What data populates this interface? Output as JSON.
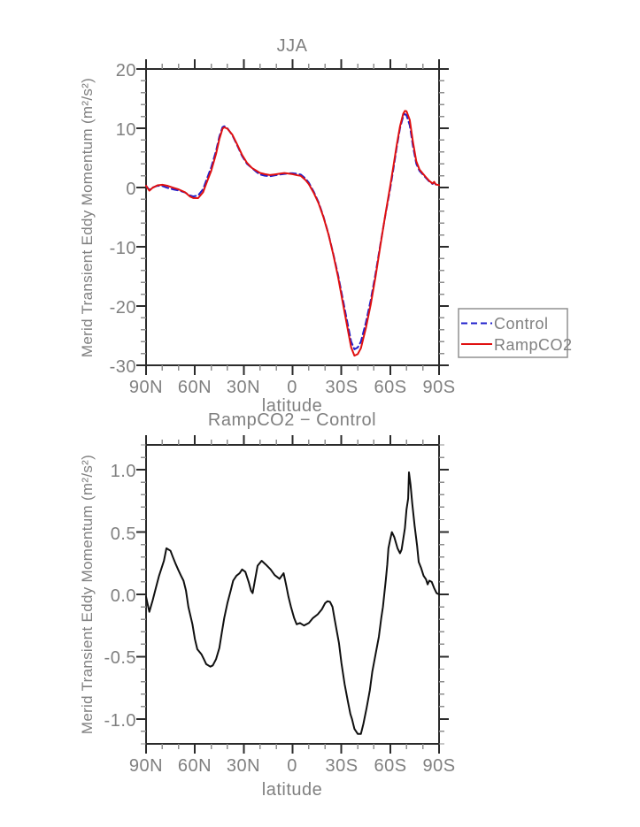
{
  "style": {
    "background": "#ffffff",
    "text_color": "#808080",
    "axis_color": "#2b2b2b",
    "minor_tick_color": "#8f8f8f",
    "legend_border_color": "#909090",
    "control_color": "#2020cc",
    "rampco2_color": "#e01010",
    "diff_color": "#101010"
  },
  "legend": {
    "entries": [
      {
        "label": "Control",
        "color": "#2020cc",
        "style": "dashed"
      },
      {
        "label": "RampCO2",
        "color": "#e01010",
        "style": "solid"
      }
    ]
  },
  "chart_data": [
    {
      "type": "line",
      "title": "JJA",
      "xlabel": "latitude",
      "ylabel": "Merid Transient Eddy Momentum (m²/s²)",
      "x_axis": {
        "min": -90,
        "max": 90,
        "major_step": 30,
        "minor_step": 10,
        "direction": "N-left to S-right",
        "tick_labels": [
          "90N",
          "60N",
          "30N",
          "0",
          "30S",
          "60S",
          "90S"
        ]
      },
      "y_axis": {
        "min": -30,
        "max": 20,
        "major_step": 10,
        "minor_step": 2,
        "tick_labels": [
          "20",
          "10",
          "0",
          "-10",
          "-20",
          "-30"
        ]
      },
      "legend_position": "outside-lower-right",
      "series": [
        {
          "name": "Control",
          "color": "#2020cc",
          "style": "dashed",
          "points": [
            [
              90,
              0.3
            ],
            [
              88,
              -0.4
            ],
            [
              86,
              0.0
            ],
            [
              83,
              0.3
            ],
            [
              80,
              0.25
            ],
            [
              77,
              -0.05
            ],
            [
              73,
              -0.35
            ],
            [
              70,
              -0.5
            ],
            [
              66,
              -0.85
            ],
            [
              63,
              -1.35
            ],
            [
              61,
              -1.5
            ],
            [
              58,
              -1.35
            ],
            [
              55,
              -0.3
            ],
            [
              53,
              1.2
            ],
            [
              50,
              3.4
            ],
            [
              47,
              6.2
            ],
            [
              45,
              8.6
            ],
            [
              43,
              10.2
            ],
            [
              42,
              10.35
            ],
            [
              40,
              10.0
            ],
            [
              37,
              8.8
            ],
            [
              34,
              7.1
            ],
            [
              31,
              5.3
            ],
            [
              28,
              4.0
            ],
            [
              25,
              3.3
            ],
            [
              22,
              2.6
            ],
            [
              20,
              2.2
            ],
            [
              17,
              2.0
            ],
            [
              14,
              1.9
            ],
            [
              11,
              2.05
            ],
            [
              8,
              2.2
            ],
            [
              5,
              2.3
            ],
            [
              2,
              2.4
            ],
            [
              0,
              2.4
            ],
            [
              -3,
              2.3
            ],
            [
              -5,
              2.2
            ],
            [
              -8,
              1.5
            ],
            [
              -10,
              0.8
            ],
            [
              -13,
              -0.7
            ],
            [
              -16,
              -2.5
            ],
            [
              -19,
              -4.9
            ],
            [
              -22,
              -7.8
            ],
            [
              -25,
              -11.2
            ],
            [
              -28,
              -14.8
            ],
            [
              -31,
              -19.0
            ],
            [
              -34,
              -23.2
            ],
            [
              -36,
              -26.0
            ],
            [
              -38,
              -27.3
            ],
            [
              -40,
              -27.0
            ],
            [
              -42,
              -26.0
            ],
            [
              -45,
              -22.8
            ],
            [
              -48,
              -19.0
            ],
            [
              -51,
              -14.5
            ],
            [
              -54,
              -9.5
            ],
            [
              -57,
              -4.7
            ],
            [
              -60,
              -0.2
            ],
            [
              -62,
              3.2
            ],
            [
              -64,
              6.8
            ],
            [
              -66,
              10.0
            ],
            [
              -68,
              12.0
            ],
            [
              -69,
              12.4
            ],
            [
              -70,
              12.2
            ],
            [
              -72,
              10.5
            ],
            [
              -74,
              6.9
            ],
            [
              -76,
              4.0
            ],
            [
              -78,
              2.8
            ],
            [
              -80,
              2.2
            ],
            [
              -82,
              1.6
            ],
            [
              -84,
              1.0
            ],
            [
              -86,
              0.6
            ],
            [
              -87,
              0.9
            ],
            [
              -88,
              0.5
            ],
            [
              -90,
              0.4
            ]
          ]
        },
        {
          "name": "RampCO2",
          "color": "#e01010",
          "style": "solid",
          "points": [
            [
              90,
              0.28
            ],
            [
              88,
              -0.54
            ],
            [
              86,
              -0.05
            ],
            [
              83,
              0.38
            ],
            [
              80,
              0.47
            ],
            [
              77,
              0.3
            ],
            [
              73,
              -0.06
            ],
            [
              70,
              -0.31
            ],
            [
              66,
              -0.81
            ],
            [
              63,
              -1.52
            ],
            [
              61,
              -1.77
            ],
            [
              58,
              -1.79
            ],
            [
              55,
              -0.8
            ],
            [
              53,
              0.64
            ],
            [
              50,
              2.82
            ],
            [
              47,
              5.68
            ],
            [
              45,
              8.17
            ],
            [
              43,
              9.92
            ],
            [
              42,
              10.16
            ],
            [
              40,
              9.93
            ],
            [
              37,
              8.91
            ],
            [
              34,
              7.26
            ],
            [
              31,
              5.5
            ],
            [
              28,
              4.17
            ],
            [
              25,
              3.32
            ],
            [
              22,
              2.8
            ],
            [
              20,
              2.46
            ],
            [
              17,
              2.25
            ],
            [
              14,
              2.11
            ],
            [
              11,
              2.21
            ],
            [
              8,
              2.33
            ],
            [
              5,
              2.45
            ],
            [
              2,
              2.33
            ],
            [
              0,
              2.25
            ],
            [
              -3,
              2.06
            ],
            [
              -5,
              1.97
            ],
            [
              -8,
              1.26
            ],
            [
              -10,
              0.57
            ],
            [
              -13,
              -0.89
            ],
            [
              -16,
              -2.66
            ],
            [
              -19,
              -5.0
            ],
            [
              -22,
              -7.86
            ],
            [
              -25,
              -11.31
            ],
            [
              -28,
              -15.17
            ],
            [
              -31,
              -19.64
            ],
            [
              -34,
              -24.06
            ],
            [
              -36,
              -26.98
            ],
            [
              -38,
              -28.38
            ],
            [
              -40,
              -28.12
            ],
            [
              -42,
              -27.12
            ],
            [
              -45,
              -23.73
            ],
            [
              -48,
              -19.74
            ],
            [
              -51,
              -14.98
            ],
            [
              -54,
              -9.72
            ],
            [
              -57,
              -4.59
            ],
            [
              -60,
              0.24
            ],
            [
              -62,
              3.67
            ],
            [
              -64,
              7.18
            ],
            [
              -66,
              10.33
            ],
            [
              -68,
              12.45
            ],
            [
              -69,
              12.93
            ],
            [
              -70,
              12.88
            ],
            [
              -72,
              11.41
            ],
            [
              -74,
              7.59
            ],
            [
              -76,
              4.42
            ],
            [
              -78,
              3.04
            ],
            [
              -80,
              2.37
            ],
            [
              -82,
              1.72
            ],
            [
              -84,
              1.11
            ],
            [
              -86,
              0.68
            ],
            [
              -87,
              0.95
            ],
            [
              -88,
              0.52
            ],
            [
              -90,
              0.4
            ]
          ]
        }
      ]
    },
    {
      "type": "line",
      "title": "RampCO2 − Control",
      "xlabel": "latitude",
      "ylabel": "Merid Transient Eddy Momentum (m²/s²)",
      "x_axis": {
        "min": -90,
        "max": 90,
        "major_step": 30,
        "minor_step": 10,
        "direction": "N-left to S-right",
        "tick_labels": [
          "90N",
          "60N",
          "30N",
          "0",
          "30S",
          "60S",
          "90S"
        ]
      },
      "y_axis": {
        "min": -1.2,
        "max": 1.2,
        "major_step": 0.5,
        "minor_step": 0.1,
        "tick_labels": [
          "1.0",
          "0.5",
          "0.0",
          "-0.5",
          "-1.0"
        ]
      },
      "series": [
        {
          "name": "RampCO2 - Control",
          "color": "#101010",
          "style": "solid",
          "points": [
            [
              90,
              -0.02
            ],
            [
              88,
              -0.14
            ],
            [
              86,
              -0.05
            ],
            [
              84,
              0.05
            ],
            [
              82,
              0.15
            ],
            [
              79,
              0.27
            ],
            [
              77.5,
              0.37
            ],
            [
              75,
              0.35
            ],
            [
              73.5,
              0.3
            ],
            [
              72,
              0.25
            ],
            [
              70,
              0.19
            ],
            [
              68.5,
              0.15
            ],
            [
              67,
              0.11
            ],
            [
              65.5,
              0.03
            ],
            [
              64,
              -0.1
            ],
            [
              61.5,
              -0.24
            ],
            [
              60,
              -0.36
            ],
            [
              58.5,
              -0.44
            ],
            [
              56,
              -0.48
            ],
            [
              54.5,
              -0.52
            ],
            [
              53,
              -0.56
            ],
            [
              50.5,
              -0.58
            ],
            [
              49,
              -0.57
            ],
            [
              47,
              -0.52
            ],
            [
              45,
              -0.43
            ],
            [
              43.5,
              -0.31
            ],
            [
              42,
              -0.19
            ],
            [
              40,
              -0.07
            ],
            [
              38,
              0.03
            ],
            [
              36.5,
              0.11
            ],
            [
              34.5,
              0.15
            ],
            [
              32.5,
              0.17
            ],
            [
              31,
              0.2
            ],
            [
              29,
              0.18
            ],
            [
              27,
              0.1
            ],
            [
              25.5,
              0.03
            ],
            [
              24.5,
              0.01
            ],
            [
              23,
              0.12
            ],
            [
              21.5,
              0.23
            ],
            [
              19,
              0.27
            ],
            [
              16.5,
              0.24
            ],
            [
              13.5,
              0.2
            ],
            [
              11,
              0.155
            ],
            [
              8,
              0.125
            ],
            [
              5.5,
              0.17
            ],
            [
              4,
              0.08
            ],
            [
              2.5,
              -0.02
            ],
            [
              1,
              -0.1
            ],
            [
              -1,
              -0.19
            ],
            [
              -2.5,
              -0.24
            ],
            [
              -4.5,
              -0.23
            ],
            [
              -7,
              -0.25
            ],
            [
              -10,
              -0.23
            ],
            [
              -12.5,
              -0.19
            ],
            [
              -15.5,
              -0.16
            ],
            [
              -18,
              -0.12
            ],
            [
              -20,
              -0.07
            ],
            [
              -21.5,
              -0.055
            ],
            [
              -23,
              -0.06
            ],
            [
              -24.5,
              -0.1
            ],
            [
              -26,
              -0.21
            ],
            [
              -28.5,
              -0.39
            ],
            [
              -30,
              -0.55
            ],
            [
              -32,
              -0.72
            ],
            [
              -34,
              -0.86
            ],
            [
              -35.5,
              -0.96
            ],
            [
              -36.5,
              -1.0
            ],
            [
              -38,
              -1.08
            ],
            [
              -40,
              -1.12
            ],
            [
              -42,
              -1.12
            ],
            [
              -43.5,
              -1.04
            ],
            [
              -45.5,
              -0.91
            ],
            [
              -47.5,
              -0.77
            ],
            [
              -49,
              -0.62
            ],
            [
              -51,
              -0.48
            ],
            [
              -53,
              -0.34
            ],
            [
              -54.5,
              -0.19
            ],
            [
              -55.5,
              -0.1
            ],
            [
              -57.3,
              0.12
            ],
            [
              -58.2,
              0.24
            ],
            [
              -58.9,
              0.37
            ],
            [
              -60,
              0.44
            ],
            [
              -61,
              0.5
            ],
            [
              -62.5,
              0.46
            ],
            [
              -64.5,
              0.37
            ],
            [
              -66,
              0.33
            ],
            [
              -67,
              0.36
            ],
            [
              -69,
              0.53
            ],
            [
              -70,
              0.68
            ],
            [
              -71,
              0.77
            ],
            [
              -71.5,
              0.98
            ],
            [
              -72.5,
              0.88
            ],
            [
              -73.5,
              0.73
            ],
            [
              -75,
              0.55
            ],
            [
              -76.5,
              0.39
            ],
            [
              -77.5,
              0.26
            ],
            [
              -79,
              0.21
            ],
            [
              -80.5,
              0.15
            ],
            [
              -82,
              0.12
            ],
            [
              -83,
              0.08
            ],
            [
              -84,
              0.11
            ],
            [
              -85.5,
              0.1
            ],
            [
              -87,
              0.05
            ],
            [
              -88.5,
              0.01
            ],
            [
              -90,
              0.0
            ]
          ]
        }
      ]
    }
  ]
}
